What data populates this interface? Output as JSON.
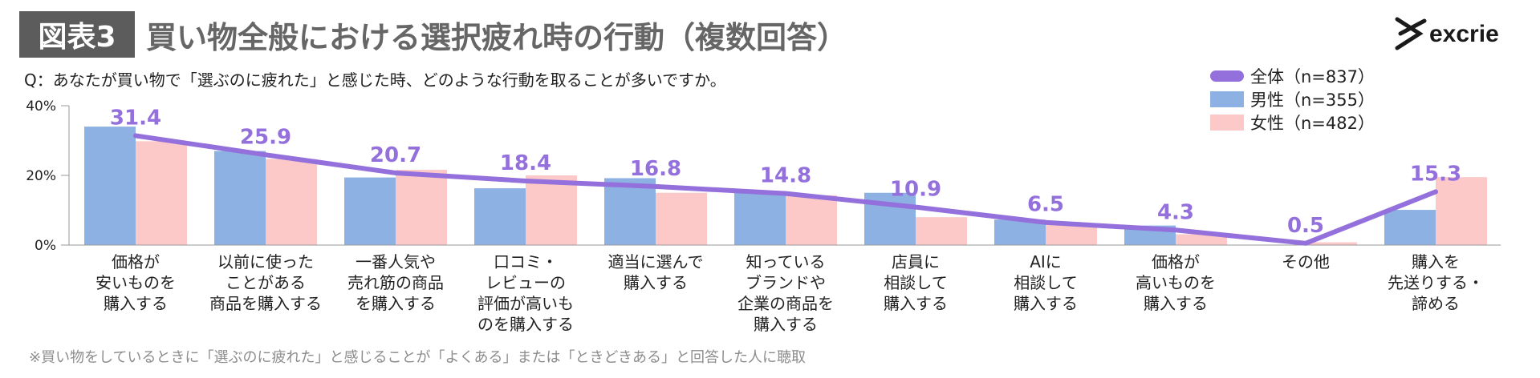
{
  "header": {
    "badge": "図表3",
    "title": "買い物全般における選択疲れ時の行動（複数回答）",
    "logo_text": "excrie"
  },
  "question": "Q：あなたが買い物で「選ぶのに疲れた」と感じた時、どのような行動を取ることが多いですか。",
  "footnote": "※買い物をしているときに「選ぶのに疲れた」と感じることが「よくある」または「ときどきある」と回答した人に聴取",
  "chart_data": {
    "type": "bar",
    "categories": [
      "価格が\n安いものを\n購入する",
      "以前に使った\nことがある\n商品を購入する",
      "一番人気や\n売れ筋の商品\nを購入する",
      "口コミ・\nレビューの\n評価が高いも\nのを購入する",
      "適当に選んで\n購入する",
      "知っている\nブランドや\n企業の商品を\n購入する",
      "店員に\n相談して\n購入する",
      "AIに\n相談して\n購入する",
      "価格が\n高いものを\n購入する",
      "その他",
      "購入を\n先送りする・\n諦める"
    ],
    "series": [
      {
        "name": "全体（n=837）",
        "kind": "line",
        "color": "#9370db",
        "values": [
          31.4,
          25.9,
          20.7,
          18.4,
          16.8,
          14.8,
          10.9,
          6.5,
          4.3,
          0.5,
          15.3
        ]
      },
      {
        "name": "男性（n=355）",
        "kind": "bar",
        "color": "#8eb1e3",
        "values": [
          34.0,
          27.0,
          19.4,
          16.3,
          19.2,
          15.2,
          15.0,
          7.3,
          5.6,
          0.0,
          10.1
        ]
      },
      {
        "name": "女性（n=482）",
        "kind": "bar",
        "color": "#fcc8c8",
        "values": [
          29.8,
          24.7,
          21.6,
          20.0,
          15.0,
          14.3,
          8.0,
          5.9,
          3.1,
          0.8,
          19.5
        ]
      }
    ],
    "value_labels": [
      "31.4",
      "25.9",
      "20.7",
      "18.4",
      "16.8",
      "14.8",
      "10.9",
      "6.5",
      "4.3",
      "0.5",
      "15.3"
    ],
    "yticks": [
      "40%",
      "20%",
      "0%"
    ],
    "ylim": [
      0,
      40
    ],
    "legend_position": "top-right"
  }
}
